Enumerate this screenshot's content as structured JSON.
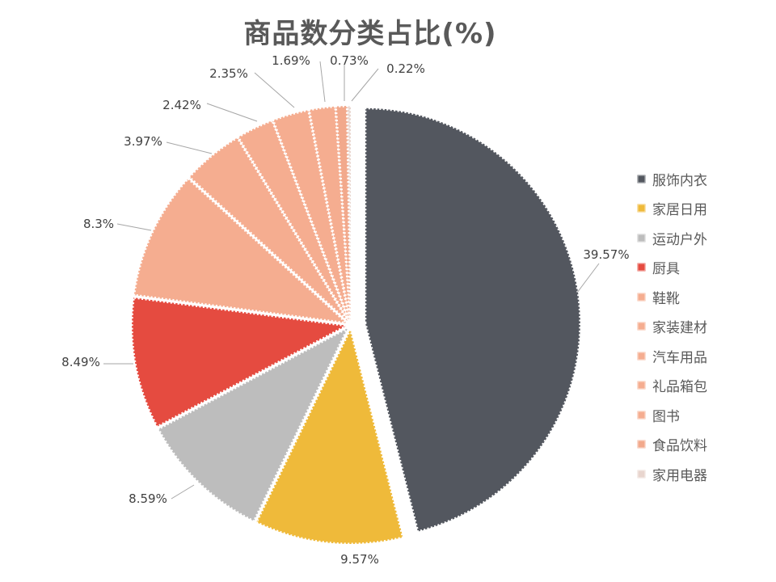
{
  "chart_data": {
    "type": "pie",
    "title": "商品数分类占比(%)",
    "categories": [
      "服饰内衣",
      "家居日用",
      "运动户外",
      "厨具",
      "鞋靴",
      "家装建材",
      "汽车用品",
      "礼品箱包",
      "图书",
      "食品饮料",
      "家用电器"
    ],
    "values": [
      39.57,
      9.57,
      8.59,
      8.49,
      8.3,
      3.97,
      2.42,
      2.35,
      1.69,
      0.73,
      0.22
    ],
    "data_labels": [
      "39.57%",
      "9.57%",
      "8.59%",
      "8.49%",
      "8.3%",
      "3.97%",
      "2.42%",
      "2.35%",
      "1.69%",
      "0.73%",
      "0.22%"
    ],
    "colors": [
      "#53575F",
      "#EFBA3A",
      "#BDBDBD",
      "#E54B40",
      "#F5AD90",
      "#F5AD90",
      "#F5AD90",
      "#F5AD90",
      "#F5AD90",
      "#F2A98C",
      "#E8D5CE"
    ],
    "start_angle": 0,
    "direction": "clockwise",
    "legend_position": "right",
    "grid": false
  },
  "title": "商品数分类占比(%)",
  "legend": {
    "items": [
      {
        "label": "服饰内衣",
        "color": "#53575F"
      },
      {
        "label": "家居日用",
        "color": "#EFBA3A"
      },
      {
        "label": "运动户外",
        "color": "#BDBDBD"
      },
      {
        "label": "厨具",
        "color": "#E54B40"
      },
      {
        "label": "鞋靴",
        "color": "#F5AD90"
      },
      {
        "label": "家装建材",
        "color": "#F5AD90"
      },
      {
        "label": "汽车用品",
        "color": "#F5AD90"
      },
      {
        "label": "礼品箱包",
        "color": "#F5AD90"
      },
      {
        "label": "图书",
        "color": "#F5AD90"
      },
      {
        "label": "食品饮料",
        "color": "#F2A98C"
      },
      {
        "label": "家用电器",
        "color": "#E8D5CE"
      }
    ]
  }
}
